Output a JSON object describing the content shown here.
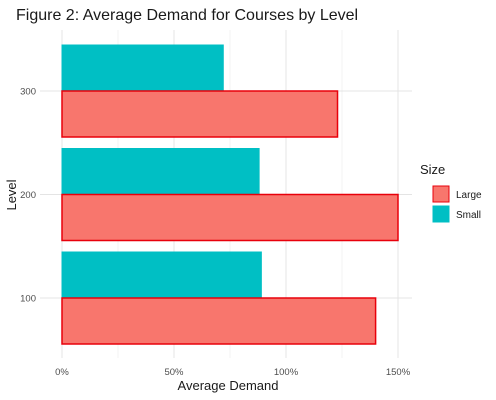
{
  "chart_data": {
    "type": "bar",
    "orientation": "horizontal",
    "title": "Figure 2: Average Demand for Courses by Level",
    "xlabel": "Average Demand",
    "ylabel": "Level",
    "categories": [
      "100",
      "200",
      "300"
    ],
    "series": [
      {
        "name": "Large",
        "values": [
          1.4,
          1.5,
          1.23
        ],
        "color": "#F8766D",
        "border": "#E8000B"
      },
      {
        "name": "Small",
        "values": [
          0.89,
          0.88,
          0.72
        ],
        "color": "#00BFC4",
        "border": "#00BFC4"
      }
    ],
    "xlim": [
      0,
      1.5
    ],
    "xticks": [
      0,
      0.5,
      1.0,
      1.5
    ],
    "xtick_labels": [
      "0%",
      "50%",
      "100%",
      "150%"
    ],
    "legend": {
      "title": "Size",
      "position": "right"
    },
    "grid": true
  }
}
